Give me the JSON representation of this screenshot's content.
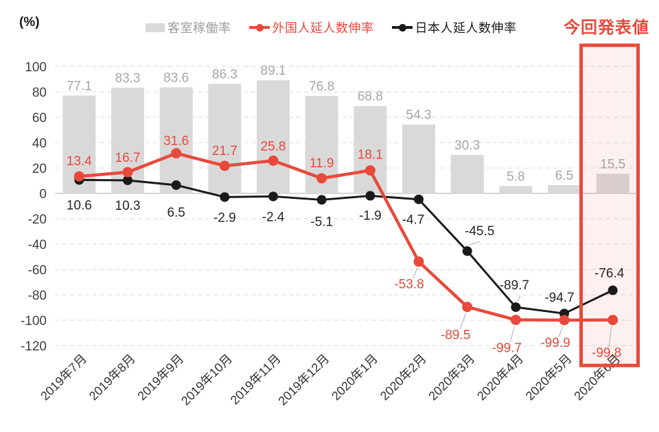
{
  "chart_data": {
    "type": "bar+line combo",
    "title": "",
    "unit_label": "(%)",
    "categories": [
      "2019年7月",
      "2019年8月",
      "2019年9月",
      "2019年10月",
      "2019年11月",
      "2019年12月",
      "2020年1月",
      "2020年2月",
      "2020年3月",
      "2020年4月",
      "2020年5月",
      "2020年6月"
    ],
    "yticks": [
      100,
      80,
      60,
      40,
      20,
      0,
      -20,
      -40,
      -60,
      -80,
      -100,
      -120
    ],
    "ylim": [
      -120,
      100
    ],
    "ytick_step": 20,
    "grid": "horizontal-dashed",
    "legend_position": "top",
    "series": [
      {
        "name": "客室稼働率",
        "type": "bar",
        "color": "#D9D9D9",
        "label_color": "#A6A6A6",
        "values": [
          77.1,
          83.3,
          83.6,
          86.3,
          89.1,
          76.8,
          68.8,
          54.3,
          30.3,
          5.8,
          6.5,
          15.5
        ]
      },
      {
        "name": "外国人延人数伸率",
        "type": "line",
        "color": "#E8493B",
        "label_color": "#E8493B",
        "values": [
          13.4,
          16.7,
          31.6,
          21.7,
          25.8,
          11.9,
          18.1,
          -53.8,
          -89.5,
          -99.7,
          -99.9,
          -99.8
        ],
        "label_offsets": [
          [
            0,
            -16
          ],
          [
            0,
            -15
          ],
          [
            0,
            -12
          ],
          [
            0,
            -16
          ],
          [
            0,
            -15
          ],
          [
            0,
            -16
          ],
          [
            0,
            -17
          ],
          [
            -14,
            39
          ],
          [
            -17,
            47
          ],
          [
            -13,
            47
          ],
          [
            -13,
            39
          ],
          [
            -9,
            54
          ]
        ],
        "label_leaders": [
          false,
          false,
          false,
          false,
          false,
          false,
          false,
          true,
          true,
          true,
          true,
          true
        ]
      },
      {
        "name": "日本人延人数伸率",
        "type": "line",
        "color": "#1A1A1A",
        "label_color": "#262626",
        "values": [
          10.6,
          10.3,
          6.5,
          -2.9,
          -2.4,
          -5.1,
          -1.9,
          -4.7,
          -45.5,
          -89.7,
          -94.7,
          -76.4
        ],
        "label_offsets": [
          [
            0,
            43
          ],
          [
            0,
            43
          ],
          [
            0,
            46
          ],
          [
            0,
            36
          ],
          [
            0,
            36
          ],
          [
            0,
            38
          ],
          [
            0,
            35
          ],
          [
            -8,
            36
          ],
          [
            18,
            -23
          ],
          [
            -2,
            -26
          ],
          [
            -7,
            -17
          ],
          [
            -5,
            -19
          ]
        ],
        "label_leaders": [
          false,
          false,
          false,
          false,
          false,
          false,
          false,
          false,
          true,
          true,
          true,
          false
        ]
      }
    ],
    "highlight_box": {
      "label": "今回発表値",
      "category": "2020年6月",
      "category_index": 11,
      "border_color": "#E8493B",
      "fill_color": "rgba(232,73,59,0.08)",
      "label_color": "#E8493B"
    },
    "axis_colors": {
      "ytick_text": "#3F3F3F",
      "xtick_text": "#333333",
      "gridline": "#D9D9D9",
      "zero_line": "#C6C6C6",
      "leader_line": "#ABABAB"
    }
  }
}
